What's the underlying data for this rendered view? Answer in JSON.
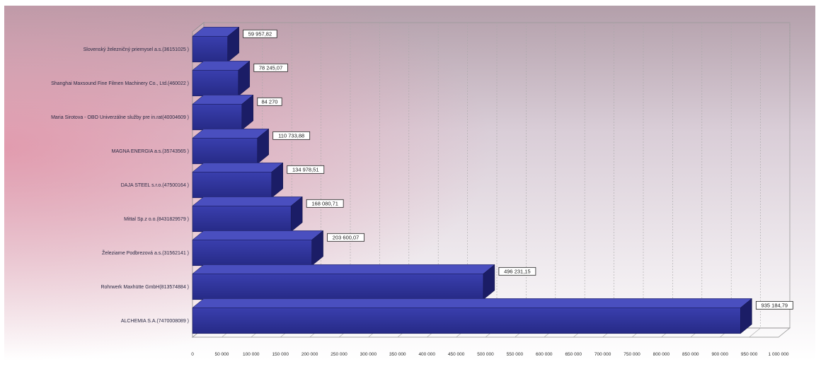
{
  "chart_data": {
    "type": "bar",
    "orientation": "horizontal",
    "title": "",
    "xlabel": "",
    "ylabel": "",
    "categories": [
      "Slovenský železničný priemysel a.s.(36151025    )",
      "Shanghai Maxsound Fine Filmen Machinery Co., Ltd.(460022    )",
      "Maria Sirotova - OBO Univerzálne služby pre in.rat(40004609    )",
      "MAGNA ENERGIA a.s.(35743565    )",
      "DAJA STEEL s.r.o.(47500164    )",
      "Mittal Sp.z o.o.(8431829579    )",
      "Železiarne Podbrezová a.s.(31562141    )",
      "Rohrwerk Maxhütte GmbH(813574884    )",
      "ALCHEMIA S.A.(7470008089    )"
    ],
    "values": [
      59957.82,
      78245.07,
      84270,
      110733.88,
      134978.51,
      168080.71,
      203600.07,
      496231.15,
      935184.79
    ],
    "value_labels": [
      "59 957,82",
      "78 245,07",
      "84 270",
      "110 733,88",
      "134 978,51",
      "168 080,71",
      "203 600,07",
      "496 231,15",
      "935 184,79"
    ],
    "xlim": [
      0,
      1000000
    ],
    "x_ticks": [
      0,
      50000,
      100000,
      150000,
      200000,
      250000,
      300000,
      350000,
      400000,
      450000,
      500000,
      550000,
      600000,
      650000,
      700000,
      750000,
      800000,
      850000,
      900000,
      950000,
      1000000
    ],
    "x_tick_labels": [
      "0",
      "50 000",
      "100 000",
      "150 000",
      "200 000",
      "250 000",
      "300 000",
      "350 000",
      "400 000",
      "450 000",
      "500 000",
      "550 000",
      "600 000",
      "650 000",
      "700 000",
      "750 000",
      "800 000",
      "850 000",
      "900 000",
      "950 000",
      "1 000 000"
    ],
    "grid": true,
    "legend": "none",
    "colors": {
      "bar_front": "#2e3192",
      "bar_top": "#4a4fbf",
      "bar_side": "#1b1d66",
      "bracket": "#f2e9a6",
      "grid": "#a8a8a8",
      "background_top": "#b7a3ac"
    }
  }
}
